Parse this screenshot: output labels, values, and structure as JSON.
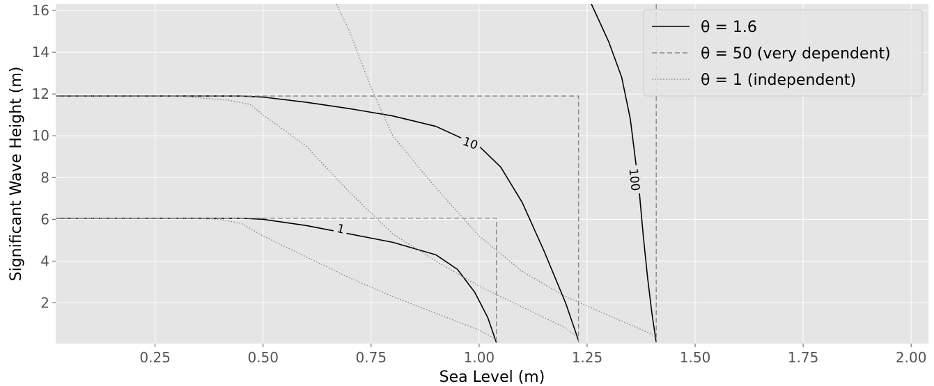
{
  "chart_data": {
    "type": "line",
    "xlabel": "Sea Level (m)",
    "ylabel": "Significant Wave Height (m)",
    "xlim": [
      0.02,
      2.04
    ],
    "ylim": [
      0.05,
      16.3
    ],
    "x_ticks": [
      0.25,
      0.5,
      0.75,
      1.0,
      1.25,
      1.5,
      1.75,
      2.0
    ],
    "x_tick_labels": [
      "0.25",
      "0.50",
      "0.75",
      "1.00",
      "1.25",
      "1.50",
      "1.75",
      "2.00"
    ],
    "y_ticks": [
      2,
      4,
      6,
      8,
      10,
      12,
      14,
      16
    ],
    "y_tick_labels": [
      "2",
      "4",
      "6",
      "8",
      "10",
      "12",
      "14",
      "16"
    ],
    "grid": true,
    "background": "#e5e5e5",
    "legend_position": "top-right",
    "legend": [
      {
        "label": "θ = 1.6",
        "style": "solid"
      },
      {
        "label": "θ = 50  (very dependent)",
        "style": "dashed"
      },
      {
        "label": "θ = 1    (independent)",
        "style": "dotted"
      }
    ],
    "series": [
      {
        "name": "θ = 1.6",
        "level": "1",
        "style": "solid",
        "color": "#000000",
        "x": [
          0.02,
          0.3,
          0.45,
          0.5,
          0.6,
          0.7,
          0.8,
          0.9,
          0.95,
          0.99,
          1.02,
          1.04
        ],
        "y": [
          6.05,
          6.05,
          6.05,
          6.0,
          5.7,
          5.3,
          4.9,
          4.3,
          3.6,
          2.5,
          1.3,
          0.1
        ]
      },
      {
        "name": "θ = 1.6",
        "level": "10",
        "style": "solid",
        "color": "#000000",
        "x": [
          0.02,
          0.3,
          0.45,
          0.5,
          0.6,
          0.7,
          0.8,
          0.9,
          1.0,
          1.05,
          1.1,
          1.15,
          1.2,
          1.23
        ],
        "y": [
          11.9,
          11.9,
          11.9,
          11.85,
          11.6,
          11.3,
          10.95,
          10.45,
          9.5,
          8.5,
          6.8,
          4.5,
          2.0,
          0.2
        ]
      },
      {
        "name": "θ = 1.6",
        "level": "100",
        "style": "solid",
        "color": "#000000",
        "x": [
          1.26,
          1.3,
          1.33,
          1.35,
          1.37,
          1.38,
          1.39,
          1.4,
          1.41
        ],
        "y": [
          16.3,
          14.5,
          12.8,
          10.8,
          7.5,
          5.2,
          3.2,
          1.5,
          0.1
        ]
      },
      {
        "name": "θ = 50  (very dependent)",
        "level": "1",
        "style": "dashed",
        "color": "#888888",
        "x": [
          0.02,
          1.04,
          1.04
        ],
        "y": [
          6.05,
          6.05,
          0.1
        ]
      },
      {
        "name": "θ = 50  (very dependent)",
        "level": "10",
        "style": "dashed",
        "color": "#888888",
        "x": [
          0.02,
          1.23,
          1.23
        ],
        "y": [
          11.9,
          11.9,
          0.1
        ]
      },
      {
        "name": "θ = 50  (very dependent)",
        "level": "100",
        "style": "dashed",
        "color": "#888888",
        "x": [
          1.41,
          1.41
        ],
        "y": [
          16.3,
          0.1
        ]
      },
      {
        "name": "θ = 1    (independent)",
        "level": "1",
        "style": "dotted",
        "color": "#888888",
        "x": [
          0.02,
          0.3,
          0.4,
          0.45,
          0.5,
          0.6,
          0.7,
          0.8,
          0.9,
          1.0,
          1.04
        ],
        "y": [
          6.05,
          6.05,
          6.0,
          5.8,
          5.2,
          4.2,
          3.2,
          2.3,
          1.5,
          0.7,
          0.25
        ]
      },
      {
        "name": "θ = 1    (independent)",
        "level": "10",
        "style": "dotted",
        "color": "#888888",
        "x": [
          0.02,
          0.3,
          0.42,
          0.47,
          0.5,
          0.6,
          0.7,
          0.8,
          0.9,
          1.0,
          1.1,
          1.2,
          1.23
        ],
        "y": [
          11.9,
          11.9,
          11.7,
          11.5,
          11.0,
          9.5,
          7.3,
          5.3,
          4.0,
          2.8,
          1.8,
          0.8,
          0.3
        ]
      },
      {
        "name": "θ = 1    (independent)",
        "level": "100",
        "style": "dotted",
        "color": "#888888",
        "x": [
          0.67,
          0.7,
          0.75,
          0.8,
          0.9,
          1.0,
          1.1,
          1.2,
          1.3,
          1.4,
          1.41
        ],
        "y": [
          16.3,
          15.0,
          12.3,
          10.0,
          7.5,
          5.2,
          3.5,
          2.3,
          1.4,
          0.5,
          0.3
        ]
      }
    ],
    "contour_labels": [
      {
        "text": "1",
        "x": 0.68,
        "y": 5.55,
        "rotation": 14
      },
      {
        "text": "10",
        "x": 0.98,
        "y": 9.65,
        "rotation": 20
      },
      {
        "text": "100",
        "x": 1.36,
        "y": 7.9,
        "rotation": 84
      }
    ]
  }
}
